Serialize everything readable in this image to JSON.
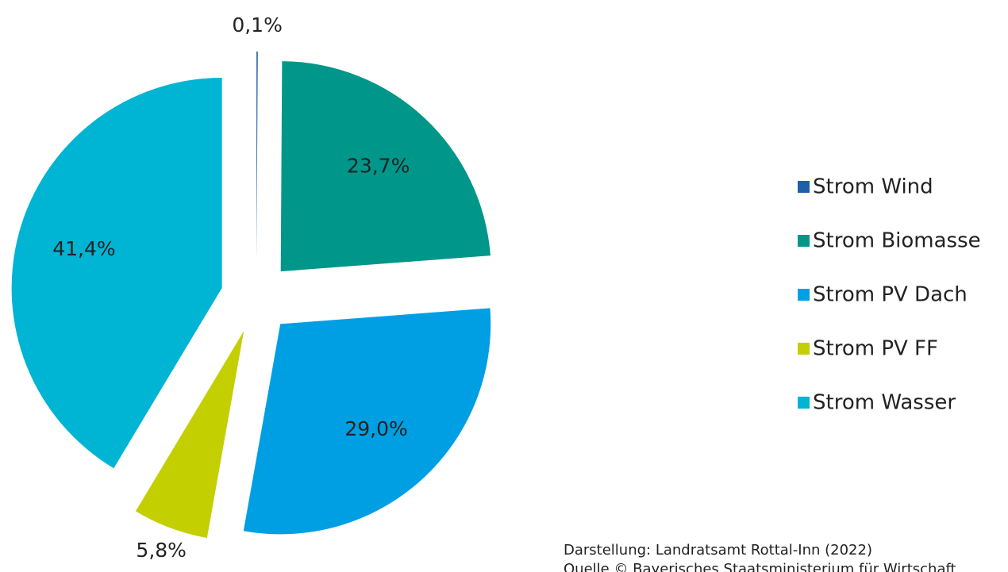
{
  "chart_data": {
    "type": "pie",
    "categories": [
      "Strom Wind",
      "Strom Biomasse",
      "Strom PV Dach",
      "Strom PV FF",
      "Strom Wasser"
    ],
    "values": [
      0.1,
      23.7,
      29.0,
      5.8,
      41.4
    ],
    "value_labels": [
      "0,1%",
      "23,7%",
      "29,0%",
      "5,8%",
      "41,4%"
    ],
    "colors": [
      "#1f5fa8",
      "#00968a",
      "#009fe3",
      "#c3cf00",
      "#00b4d4"
    ],
    "legend": "right",
    "annotations": [
      "Darstellung: Landratsamt Rottal-Inn (2022)",
      "Quelle © Bayerisches Staatsministerium für Wirtschaft"
    ]
  }
}
